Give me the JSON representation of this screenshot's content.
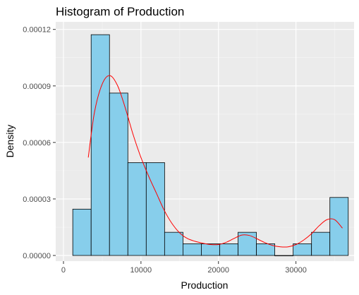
{
  "chart_data": {
    "type": "histogram",
    "title": "Histogram of Production",
    "xlabel": "Production",
    "ylabel": "Density",
    "xlim": [
      -1000,
      37500
    ],
    "ylim": [
      -3e-06,
      0.000124
    ],
    "x_ticks": [
      0,
      10000,
      20000,
      30000
    ],
    "x_tick_labels": [
      "0",
      "10000",
      "20000",
      "30000"
    ],
    "y_ticks": [
      0,
      3e-05,
      6e-05,
      9e-05,
      0.00012
    ],
    "y_tick_labels": [
      "0.00000",
      "0.00003",
      "0.00006",
      "0.00009",
      "0.00012"
    ],
    "grid": true,
    "bins": [
      {
        "start": 1200,
        "end": 3570,
        "density": 2.46e-05
      },
      {
        "start": 3570,
        "end": 5940,
        "density": 0.0001172
      },
      {
        "start": 5940,
        "end": 8310,
        "density": 8.62e-05
      },
      {
        "start": 8310,
        "end": 10680,
        "density": 4.93e-05
      },
      {
        "start": 10680,
        "end": 13050,
        "density": 4.93e-05
      },
      {
        "start": 13050,
        "end": 15420,
        "density": 1.23e-05
      },
      {
        "start": 15420,
        "end": 17790,
        "density": 6.2e-06
      },
      {
        "start": 17790,
        "end": 20160,
        "density": 6.2e-06
      },
      {
        "start": 20160,
        "end": 22530,
        "density": 6.2e-06
      },
      {
        "start": 22530,
        "end": 24900,
        "density": 1.23e-05
      },
      {
        "start": 24900,
        "end": 27270,
        "density": 6.2e-06
      },
      {
        "start": 27270,
        "end": 29640,
        "density": 0
      },
      {
        "start": 29640,
        "end": 32010,
        "density": 6.2e-06
      },
      {
        "start": 32010,
        "end": 34380,
        "density": 1.23e-05
      },
      {
        "start": 34380,
        "end": 36750,
        "density": 3.08e-05
      }
    ],
    "density_curve": {
      "color": "#ff0000",
      "points": [
        [
          3200,
          5.2e-05
        ],
        [
          4000,
          7.6e-05
        ],
        [
          5000,
          9.1e-05
        ],
        [
          6000,
          9.55e-05
        ],
        [
          7000,
          9e-05
        ],
        [
          8000,
          7.8e-05
        ],
        [
          9000,
          6.4e-05
        ],
        [
          10000,
          5.2e-05
        ],
        [
          11000,
          4.2e-05
        ],
        [
          12000,
          3.3e-05
        ],
        [
          13000,
          2.4e-05
        ],
        [
          14000,
          1.7e-05
        ],
        [
          15000,
          1.2e-05
        ],
        [
          16000,
          9e-06
        ],
        [
          17000,
          7.5e-06
        ],
        [
          18000,
          6.5e-06
        ],
        [
          19000,
          5.8e-06
        ],
        [
          20000,
          5.8e-06
        ],
        [
          21000,
          7e-06
        ],
        [
          22000,
          9e-06
        ],
        [
          23000,
          1.08e-05
        ],
        [
          24000,
          1.06e-05
        ],
        [
          25000,
          8.8e-06
        ],
        [
          26000,
          6.8e-06
        ],
        [
          27000,
          5.3e-06
        ],
        [
          28000,
          4.6e-06
        ],
        [
          29000,
          4.6e-06
        ],
        [
          30000,
          5.8e-06
        ],
        [
          31000,
          8.2e-06
        ],
        [
          32000,
          1.15e-05
        ],
        [
          33000,
          1.58e-05
        ],
        [
          34000,
          1.9e-05
        ],
        [
          35000,
          1.9e-05
        ],
        [
          36000,
          1.45e-05
        ]
      ]
    },
    "colors": {
      "bar_fill": "#87ceeb",
      "bar_stroke": "#000000",
      "panel_background": "#ebebeb",
      "grid_major": "#ffffff",
      "grid_minor": "#f5f5f5",
      "curve": "#ff0000"
    }
  }
}
